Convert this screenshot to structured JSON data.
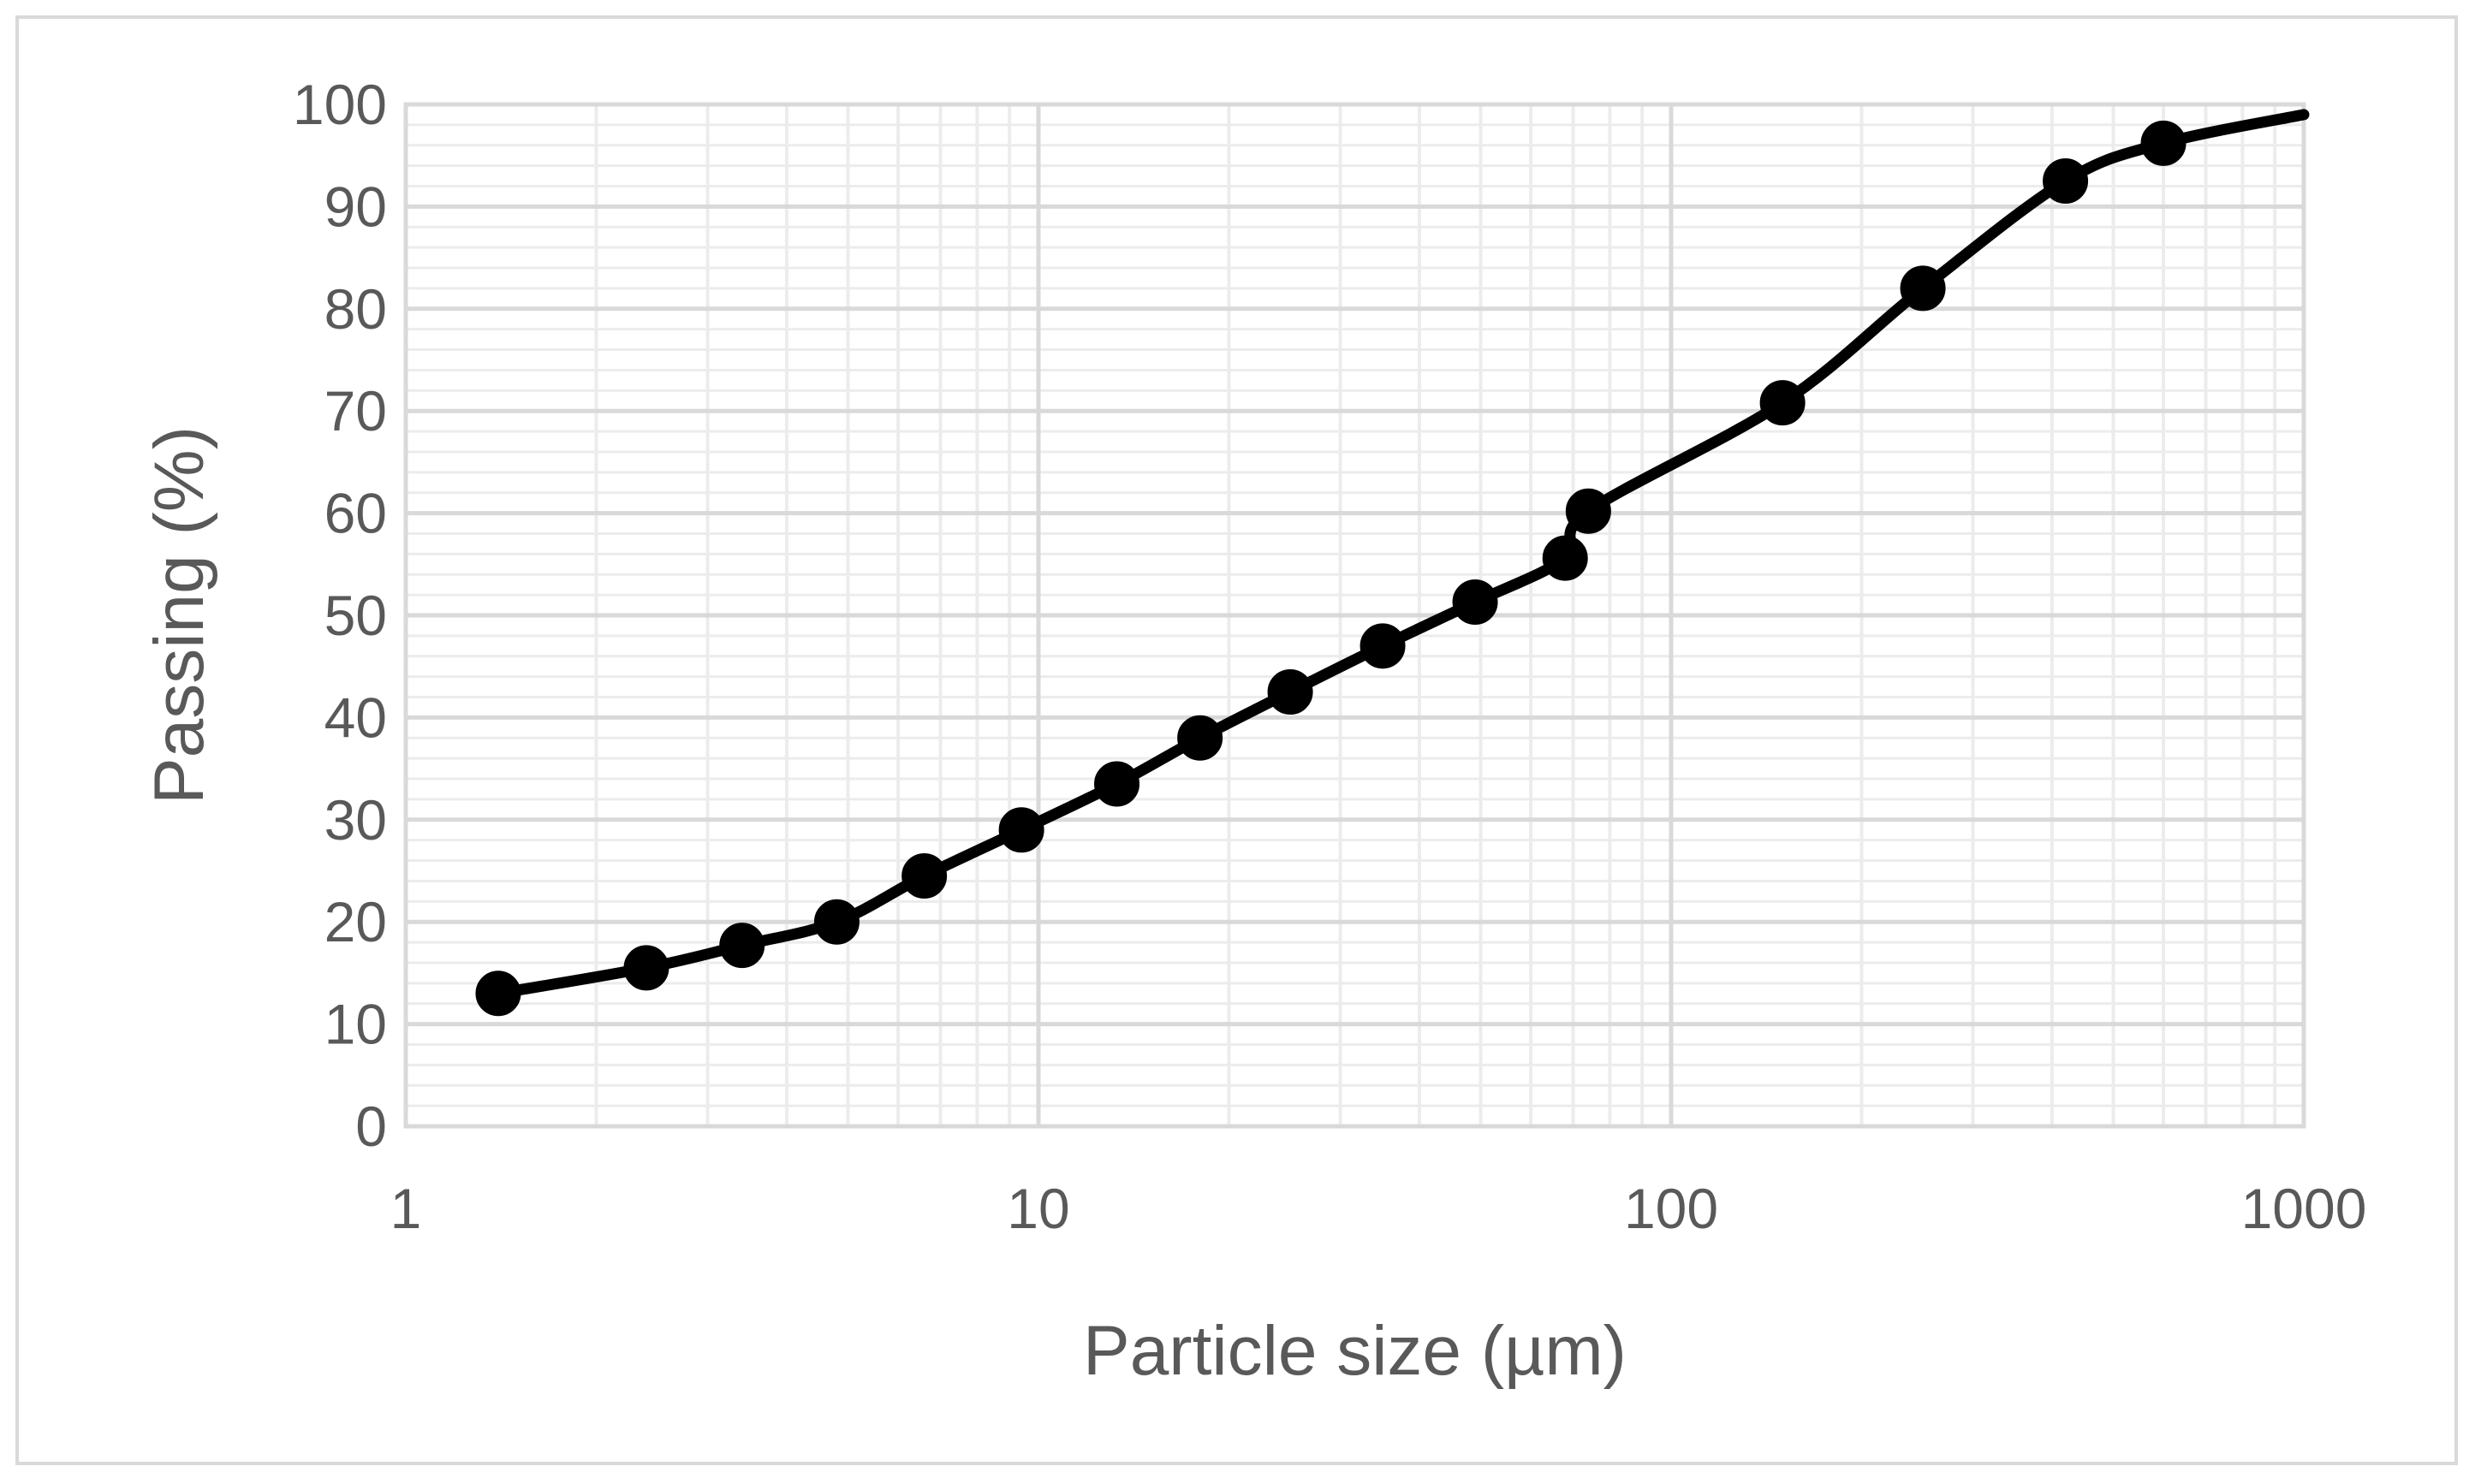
{
  "chart_data": {
    "type": "line",
    "title": "",
    "xlabel": "Particle size (µm)",
    "ylabel": "Passing (%)",
    "x_scale": "log",
    "xlim": [
      1,
      1000
    ],
    "ylim": [
      0,
      100
    ],
    "x_ticks": [
      1,
      10,
      100,
      1000
    ],
    "x_tick_labels": [
      "1",
      "10",
      "100",
      "1000"
    ],
    "y_ticks": [
      0,
      10,
      20,
      30,
      40,
      50,
      60,
      70,
      80,
      90,
      100
    ],
    "y_tick_labels": [
      "0",
      "10",
      "20",
      "30",
      "40",
      "50",
      "60",
      "70",
      "80",
      "90",
      "100"
    ],
    "grid": true,
    "legend": "none",
    "line_color": "#000000",
    "smooth": true,
    "series": [
      {
        "x": [
          1.4,
          2.4,
          3.4,
          4.8,
          6.6,
          9.4,
          13.3,
          18,
          25,
          35,
          49,
          68,
          74,
          150,
          250,
          420,
          600
        ],
        "y": [
          13,
          15.5,
          17.7,
          20,
          24.5,
          29,
          33.5,
          38,
          42.5,
          47,
          51.3,
          55.6,
          60.2,
          70.8,
          82,
          92.5,
          96.2
        ],
        "end_x": 1000,
        "end_y": 99
      }
    ]
  }
}
